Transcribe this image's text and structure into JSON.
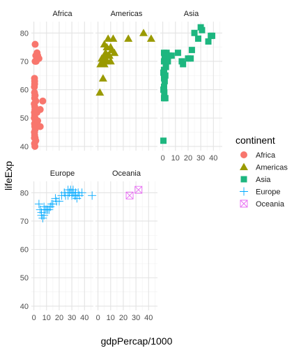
{
  "chart_data": {
    "type": "scatter",
    "faceted_by": "continent",
    "xlabel": "gdpPercap/1000",
    "ylabel": "lifeExp",
    "xlim": [
      -2,
      47
    ],
    "ylim": [
      38.5,
      84
    ],
    "x_ticks": [
      0,
      10,
      20,
      30,
      40
    ],
    "y_ticks": [
      40,
      50,
      60,
      70,
      80
    ],
    "x_tick_labels": [
      "0",
      "10",
      "20",
      "30",
      "40"
    ],
    "y_tick_labels": [
      "40",
      "50",
      "60",
      "70",
      "80"
    ],
    "grid": true,
    "legend": {
      "title": "continent",
      "placement": "right"
    },
    "series": [
      {
        "name": "Africa",
        "panel": 0,
        "color": "#F8766D",
        "shape": "circle",
        "points": [
          [
            1,
            76
          ],
          [
            1.5,
            72
          ],
          [
            2.5,
            73
          ],
          [
            3,
            72
          ],
          [
            4,
            71
          ],
          [
            1,
            70
          ],
          [
            1.8,
            70
          ],
          [
            0.5,
            64
          ],
          [
            0.6,
            63
          ],
          [
            0.4,
            61
          ],
          [
            0.5,
            59
          ],
          [
            0.6,
            57
          ],
          [
            0.3,
            55
          ],
          [
            0.7,
            54
          ],
          [
            0.8,
            53
          ],
          [
            0.4,
            52
          ],
          [
            0.6,
            51
          ],
          [
            0.9,
            50
          ],
          [
            1.2,
            49
          ],
          [
            0.5,
            48
          ],
          [
            0.7,
            47
          ],
          [
            1,
            46
          ],
          [
            0.4,
            45
          ],
          [
            0.6,
            44
          ],
          [
            1,
            43
          ],
          [
            1.5,
            42
          ],
          [
            0.5,
            41
          ],
          [
            0.8,
            40
          ],
          [
            5,
            53
          ],
          [
            7,
            56
          ],
          [
            3,
            49
          ],
          [
            5,
            47
          ],
          [
            0.6,
            62
          ],
          [
            1,
            58
          ],
          [
            0.3,
            50
          ],
          [
            0.5,
            45
          ],
          [
            1.5,
            56
          ],
          [
            2.5,
            52
          ],
          [
            0.4,
            43
          ],
          [
            0.8,
            58
          ]
        ]
      },
      {
        "name": "Americas",
        "panel": 1,
        "color": "#9A9A00",
        "shape": "triangle",
        "points": [
          [
            36,
            80
          ],
          [
            42,
            78
          ],
          [
            8,
            78
          ],
          [
            12,
            78
          ],
          [
            5,
            76
          ],
          [
            7,
            75
          ],
          [
            10,
            75
          ],
          [
            6,
            73
          ],
          [
            8,
            72
          ],
          [
            5,
            72
          ],
          [
            3,
            71
          ],
          [
            4,
            70
          ],
          [
            7,
            70
          ],
          [
            10,
            70
          ],
          [
            5,
            69
          ],
          [
            2,
            69
          ],
          [
            4,
            64
          ],
          [
            1.5,
            59
          ],
          [
            13,
            73
          ],
          [
            9,
            72
          ],
          [
            6,
            71
          ],
          [
            11,
            74
          ],
          [
            24,
            78
          ]
        ]
      },
      {
        "name": "Asia",
        "panel": 2,
        "color": "#1DB67F",
        "shape": "square",
        "points": [
          [
            0.5,
            42
          ],
          [
            1,
            57
          ],
          [
            2,
            57
          ],
          [
            3,
            73
          ],
          [
            1,
            73
          ],
          [
            1.5,
            72
          ],
          [
            2,
            71
          ],
          [
            1,
            70
          ],
          [
            4,
            70
          ],
          [
            2.5,
            68
          ],
          [
            1,
            67
          ],
          [
            0.5,
            66
          ],
          [
            2,
            65
          ],
          [
            1,
            64
          ],
          [
            1.5,
            63
          ],
          [
            1,
            61
          ],
          [
            0.5,
            60
          ],
          [
            1.2,
            59
          ],
          [
            3,
            70
          ],
          [
            5,
            72
          ],
          [
            7,
            72
          ],
          [
            12,
            73
          ],
          [
            16,
            69
          ],
          [
            22,
            71
          ],
          [
            23,
            74
          ],
          [
            25,
            80
          ],
          [
            28,
            78
          ],
          [
            30,
            82
          ],
          [
            31,
            81
          ],
          [
            36,
            77
          ],
          [
            38,
            79
          ],
          [
            39,
            79
          ],
          [
            15,
            70
          ],
          [
            20,
            71
          ]
        ]
      },
      {
        "name": "Europe",
        "panel": 3,
        "color": "#00A9FF",
        "shape": "plus",
        "points": [
          [
            6,
            72
          ],
          [
            7,
            71
          ],
          [
            8,
            72
          ],
          [
            5,
            74
          ],
          [
            6,
            73
          ],
          [
            10,
            74
          ],
          [
            11,
            74
          ],
          [
            13,
            75
          ],
          [
            14,
            76
          ],
          [
            15,
            76
          ],
          [
            18,
            77
          ],
          [
            20,
            77
          ],
          [
            22,
            79
          ],
          [
            25,
            79
          ],
          [
            27,
            79
          ],
          [
            28,
            80
          ],
          [
            29,
            81
          ],
          [
            30,
            79
          ],
          [
            31,
            80
          ],
          [
            32,
            79
          ],
          [
            33,
            80
          ],
          [
            34,
            78
          ],
          [
            35,
            80
          ],
          [
            36,
            79
          ],
          [
            38,
            80
          ],
          [
            46,
            79
          ],
          [
            4,
            76
          ],
          [
            8,
            75
          ],
          [
            9,
            74
          ],
          [
            12,
            74
          ],
          [
            17,
            78
          ],
          [
            24,
            80
          ],
          [
            27,
            81
          ],
          [
            30,
            80
          ],
          [
            31,
            81
          ],
          [
            33,
            79
          ]
        ]
      },
      {
        "name": "Oceania",
        "panel": 4,
        "color": "#E76BF3",
        "shape": "square-cross",
        "points": [
          [
            25,
            79
          ],
          [
            32,
            81
          ]
        ]
      }
    ],
    "panels": [
      "Africa",
      "Americas",
      "Asia",
      "Europe",
      "Oceania"
    ]
  }
}
